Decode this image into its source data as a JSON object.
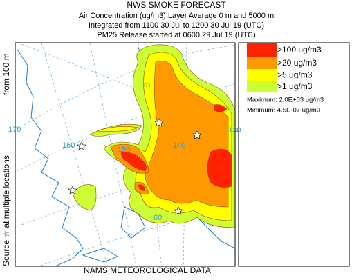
{
  "header": {
    "title": "NWS SMOKE FORECAST",
    "lines": [
      "Air Concentration (ug/m3) Layer Average    0 m and  5000 m",
      "Integrated from 1100 30 Jul to 1200 30 Jul 19 (UTC)",
      "PM25 Release started at 0600 29 Jul 19 (UTC)"
    ]
  },
  "side_label": {
    "source": "Source ☆ at multiple locations",
    "height": "from  100 m"
  },
  "footer": "NAMS METEOROLOGICAL DATA",
  "legend": {
    "items": [
      {
        "label": ">100 ug/m3",
        "color": "#ff2200"
      },
      {
        "label": ">20 ug/m3",
        "color": "#ff9900"
      },
      {
        "label": ">5 ug/m3",
        "color": "#ffff00"
      },
      {
        "label": ">1 ug/m3",
        "color": "#ccff33"
      }
    ],
    "maximum": "Maximum: 2.0E+03 ug/m3",
    "minimum": "Minimum: 4.5E-07 ug/m3"
  },
  "map": {
    "graticule_labels": [
      "170",
      "160",
      "150",
      "140",
      "130",
      "70",
      "60"
    ]
  }
}
